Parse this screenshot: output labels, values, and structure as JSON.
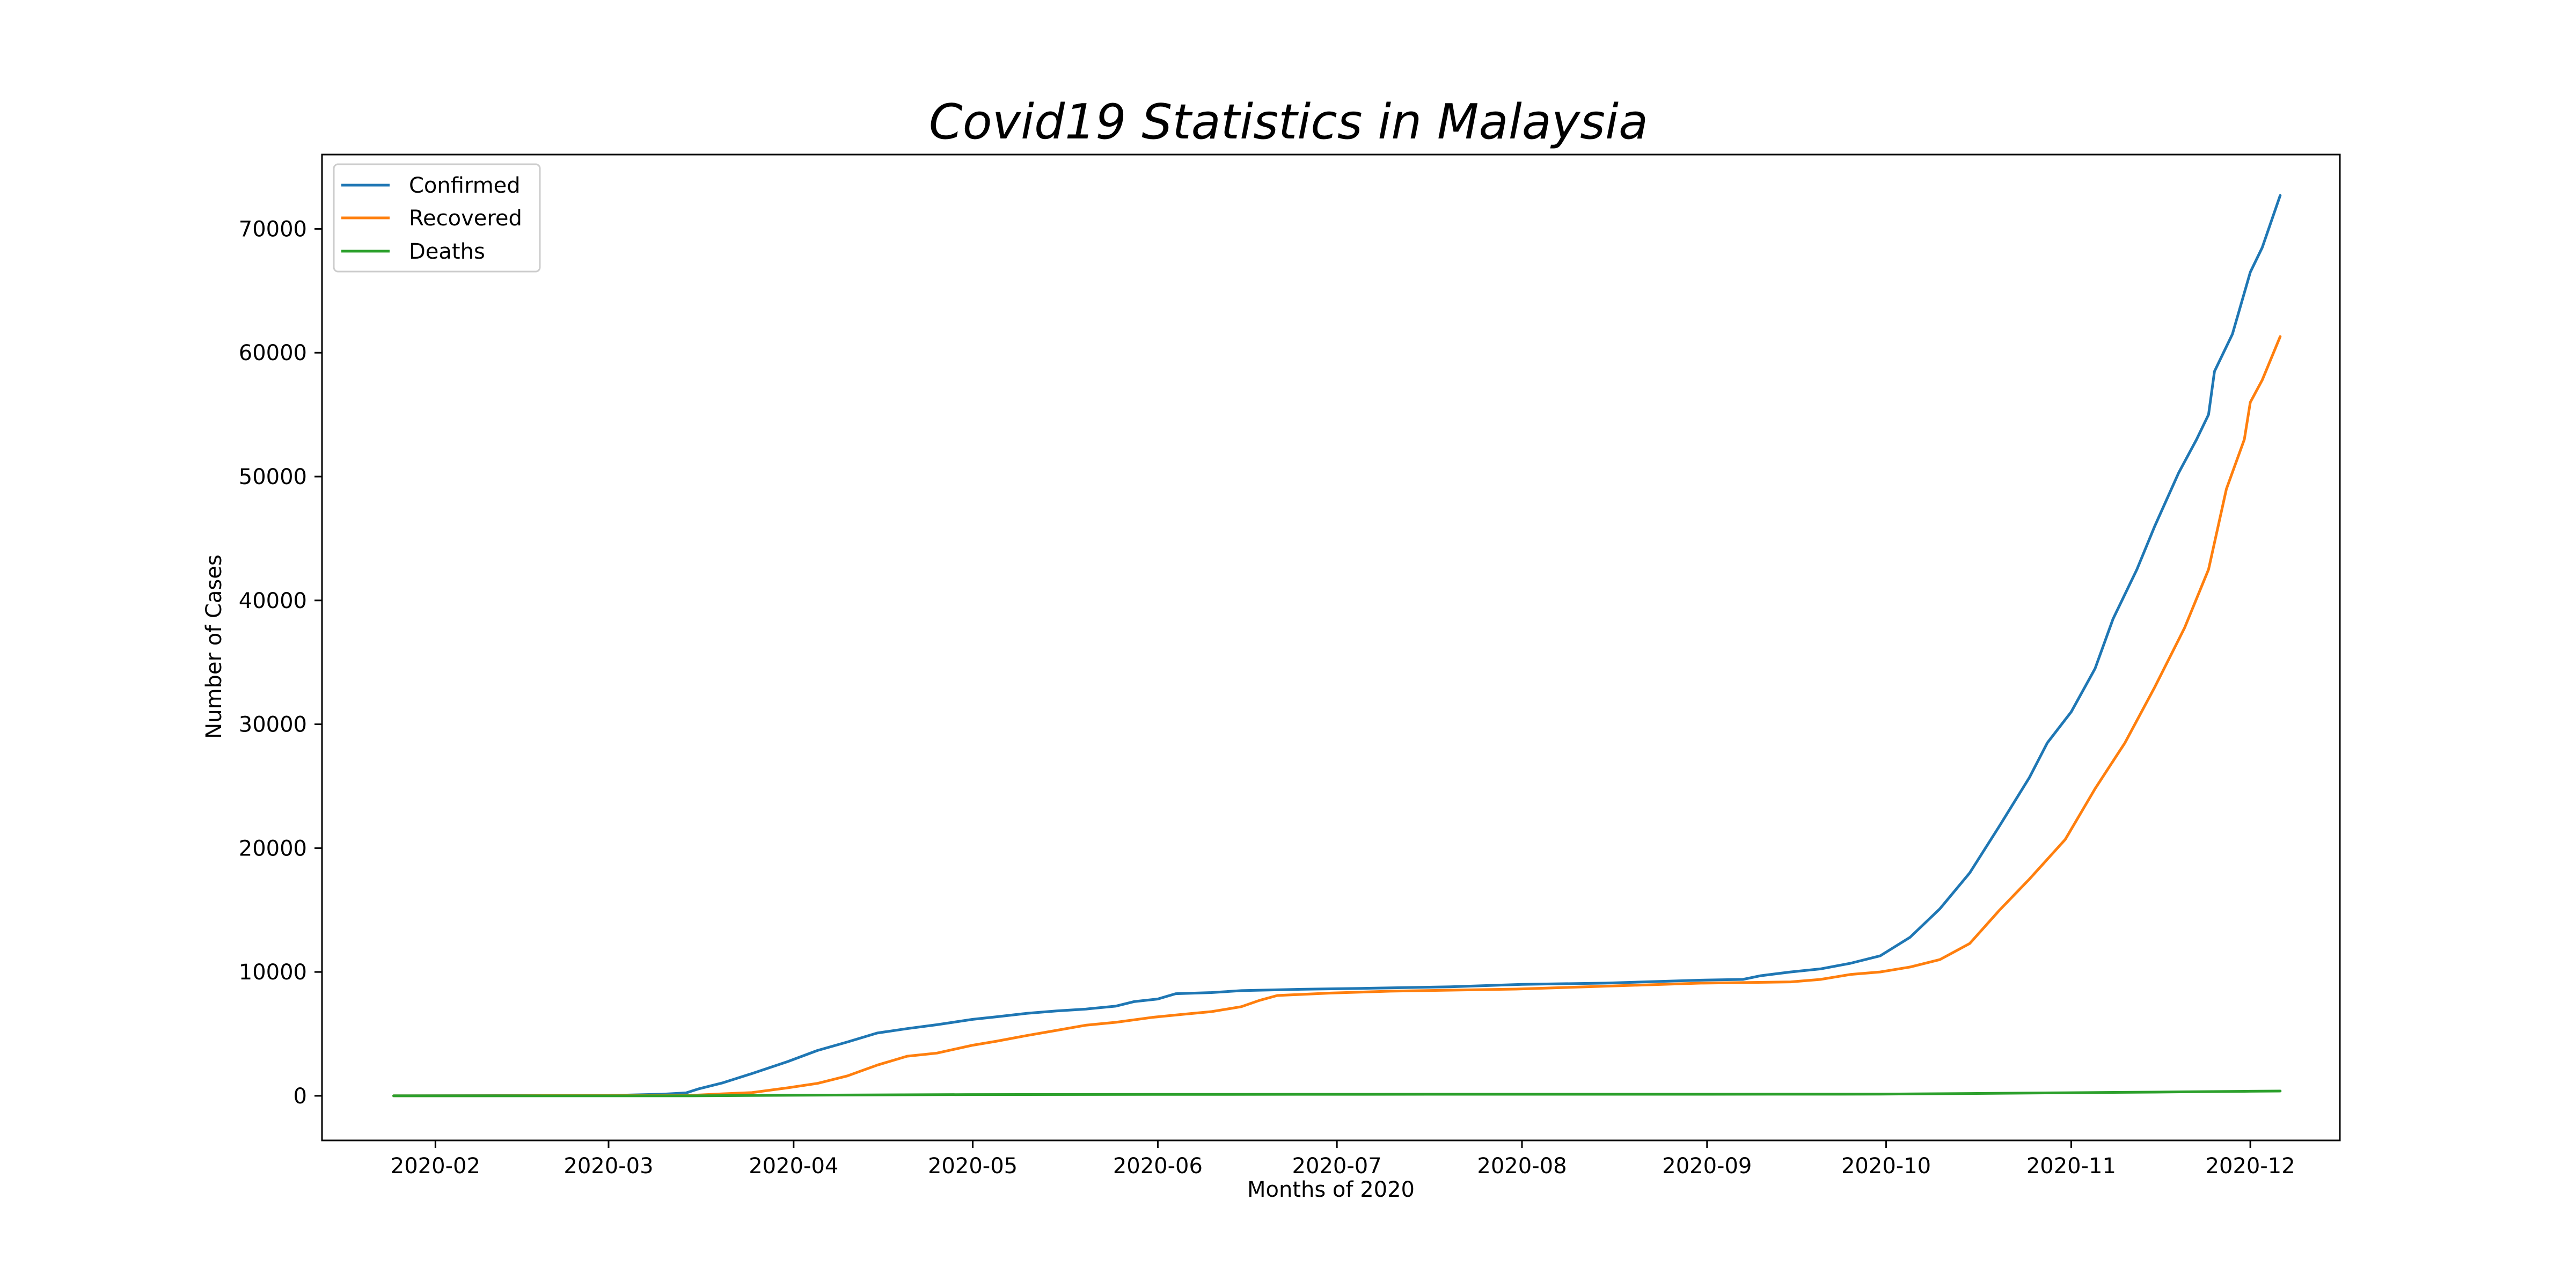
{
  "chart_data": {
    "type": "line",
    "title": "Covid19 Statistics in Malaysia",
    "xlabel": "Months of 2020",
    "ylabel": "Number of Cases",
    "x_ticks": [
      "2020-02",
      "2020-03",
      "2020-04",
      "2020-05",
      "2020-06",
      "2020-07",
      "2020-08",
      "2020-09",
      "2020-10",
      "2020-11",
      "2020-12"
    ],
    "y_ticks": [
      0,
      10000,
      20000,
      30000,
      40000,
      50000,
      60000,
      70000
    ],
    "xlim": [
      "2020-01-13",
      "2020-12-16"
    ],
    "ylim": [
      -3600,
      76000
    ],
    "grid": false,
    "legend_position": "top-left",
    "series": [
      {
        "name": "Confirmed",
        "color": "#1f77b4",
        "points": [
          [
            "2020-01-25",
            3
          ],
          [
            "2020-02-15",
            22
          ],
          [
            "2020-03-01",
            29
          ],
          [
            "2020-03-10",
            129
          ],
          [
            "2020-03-14",
            238
          ],
          [
            "2020-03-16",
            553
          ],
          [
            "2020-03-20",
            1030
          ],
          [
            "2020-03-25",
            1796
          ],
          [
            "2020-03-31",
            2766
          ],
          [
            "2020-04-05",
            3662
          ],
          [
            "2020-04-10",
            4346
          ],
          [
            "2020-04-15",
            5072
          ],
          [
            "2020-04-20",
            5425
          ],
          [
            "2020-04-25",
            5742
          ],
          [
            "2020-05-01",
            6176
          ],
          [
            "2020-05-05",
            6383
          ],
          [
            "2020-05-10",
            6656
          ],
          [
            "2020-05-15",
            6855
          ],
          [
            "2020-05-20",
            7009
          ],
          [
            "2020-05-25",
            7245
          ],
          [
            "2020-05-28",
            7604
          ],
          [
            "2020-06-01",
            7819
          ],
          [
            "2020-06-04",
            8247
          ],
          [
            "2020-06-10",
            8336
          ],
          [
            "2020-06-15",
            8494
          ],
          [
            "2020-06-25",
            8600
          ],
          [
            "2020-07-05",
            8674
          ],
          [
            "2020-07-20",
            8800
          ],
          [
            "2020-08-01",
            9000
          ],
          [
            "2020-08-15",
            9100
          ],
          [
            "2020-08-31",
            9340
          ],
          [
            "2020-09-07",
            9400
          ],
          [
            "2020-09-10",
            9700
          ],
          [
            "2020-09-15",
            10000
          ],
          [
            "2020-09-20",
            10250
          ],
          [
            "2020-09-25",
            10700
          ],
          [
            "2020-09-30",
            11300
          ],
          [
            "2020-10-05",
            12800
          ],
          [
            "2020-10-10",
            15100
          ],
          [
            "2020-10-15",
            18000
          ],
          [
            "2020-10-20",
            21800
          ],
          [
            "2020-10-25",
            25700
          ],
          [
            "2020-10-28",
            28500
          ],
          [
            "2020-11-01",
            31000
          ],
          [
            "2020-11-05",
            34500
          ],
          [
            "2020-11-08",
            38500
          ],
          [
            "2020-11-12",
            42500
          ],
          [
            "2020-11-15",
            46000
          ],
          [
            "2020-11-19",
            50300
          ],
          [
            "2020-11-22",
            53000
          ],
          [
            "2020-11-24",
            55000
          ],
          [
            "2020-11-25",
            58500
          ],
          [
            "2020-11-28",
            61500
          ],
          [
            "2020-12-01",
            66500
          ],
          [
            "2020-12-03",
            68500
          ],
          [
            "2020-12-06",
            72700
          ]
        ]
      },
      {
        "name": "Recovered",
        "color": "#ff7f0e",
        "points": [
          [
            "2020-01-25",
            0
          ],
          [
            "2020-02-15",
            15
          ],
          [
            "2020-03-01",
            22
          ],
          [
            "2020-03-15",
            42
          ],
          [
            "2020-03-20",
            159
          ],
          [
            "2020-03-25",
            259
          ],
          [
            "2020-03-31",
            645
          ],
          [
            "2020-04-05",
            1005
          ],
          [
            "2020-04-10",
            1608
          ],
          [
            "2020-04-15",
            2478
          ],
          [
            "2020-04-20",
            3197
          ],
          [
            "2020-04-25",
            3452
          ],
          [
            "2020-05-01",
            4087
          ],
          [
            "2020-05-05",
            4413
          ],
          [
            "2020-05-10",
            4864
          ],
          [
            "2020-05-15",
            5281
          ],
          [
            "2020-05-20",
            5706
          ],
          [
            "2020-05-25",
            5939
          ],
          [
            "2020-05-31",
            6330
          ],
          [
            "2020-06-05",
            6571
          ],
          [
            "2020-06-10",
            6800
          ],
          [
            "2020-06-15",
            7200
          ],
          [
            "2020-06-18",
            7700
          ],
          [
            "2020-06-21",
            8100
          ],
          [
            "2020-06-30",
            8300
          ],
          [
            "2020-07-10",
            8450
          ],
          [
            "2020-07-31",
            8620
          ],
          [
            "2020-08-31",
            9100
          ],
          [
            "2020-09-15",
            9200
          ],
          [
            "2020-09-20",
            9400
          ],
          [
            "2020-09-25",
            9800
          ],
          [
            "2020-09-30",
            10000
          ],
          [
            "2020-10-05",
            10400
          ],
          [
            "2020-10-10",
            11000
          ],
          [
            "2020-10-15",
            12300
          ],
          [
            "2020-10-20",
            15000
          ],
          [
            "2020-10-25",
            17500
          ],
          [
            "2020-10-31",
            20700
          ],
          [
            "2020-11-05",
            24800
          ],
          [
            "2020-11-10",
            28500
          ],
          [
            "2020-11-15",
            33000
          ],
          [
            "2020-11-20",
            37800
          ],
          [
            "2020-11-24",
            42500
          ],
          [
            "2020-11-27",
            49000
          ],
          [
            "2020-11-30",
            53000
          ],
          [
            "2020-12-01",
            56000
          ],
          [
            "2020-12-03",
            57800
          ],
          [
            "2020-12-06",
            61300
          ]
        ]
      },
      {
        "name": "Deaths",
        "color": "#2ca02c",
        "points": [
          [
            "2020-01-25",
            0
          ],
          [
            "2020-03-15",
            0
          ],
          [
            "2020-03-31",
            43
          ],
          [
            "2020-04-30",
            100
          ],
          [
            "2020-05-31",
            115
          ],
          [
            "2020-06-30",
            121
          ],
          [
            "2020-07-31",
            125
          ],
          [
            "2020-08-31",
            128
          ],
          [
            "2020-09-30",
            136
          ],
          [
            "2020-10-15",
            187
          ],
          [
            "2020-10-31",
            249
          ],
          [
            "2020-11-15",
            300
          ],
          [
            "2020-11-30",
            363
          ],
          [
            "2020-12-06",
            385
          ]
        ]
      }
    ]
  }
}
